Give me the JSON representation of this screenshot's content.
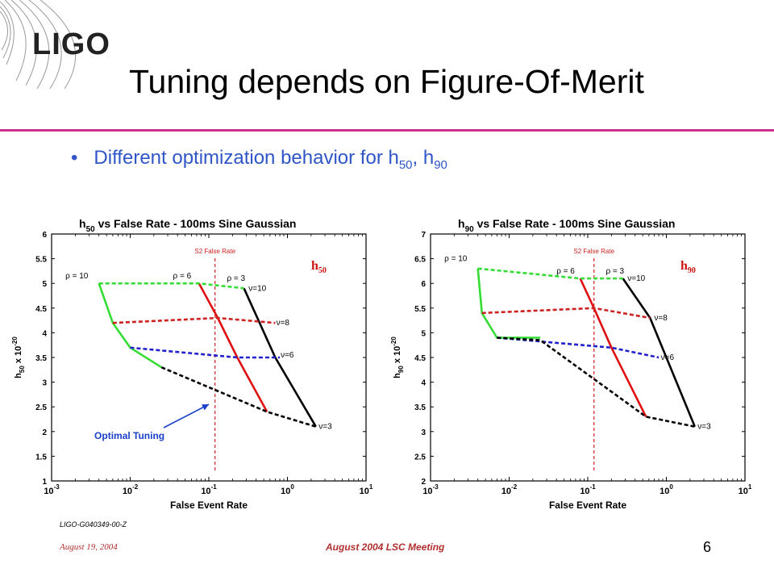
{
  "logo": {
    "text": "LIGO"
  },
  "slide": {
    "title": "Tuning depends on Figure-Of-Merit",
    "bullet": {
      "text": "Different optimization behavior for h",
      "sub1": "50",
      "sep": ", h",
      "sub2": "90"
    }
  },
  "footer": {
    "doc_id": "LIGO-G040349-00-Z",
    "date": "August 19, 2004",
    "meeting": "August 2004 LSC Meeting",
    "page": "6"
  },
  "colors": {
    "accent_rule": "#c8328c",
    "bullet_text": "#2f55c6",
    "footer_text": "#b0302f",
    "rho10": "#33dd33",
    "rho6": "#dd1111",
    "rho3": "#000000",
    "nu8": "#cc2222",
    "nu6": "#2222cc",
    "nu3": "#000000",
    "s2_line": "#cc2222",
    "annotation": "#1a3fc8"
  },
  "chart_data": [
    {
      "type": "line",
      "title_prefix": "h",
      "title_sub": "50",
      "title_rest": " vs False Rate - 100ms Sine Gaussian",
      "xlabel": "False Event Rate",
      "ylabel_prefix": "h",
      "ylabel_sub": "50",
      "ylabel_rest": " x 10",
      "ylabel_exp": "-20",
      "x_scale": "log",
      "xlim": [
        0.001,
        10
      ],
      "x_ticks": [
        {
          "v": 0.001,
          "e": "-3"
        },
        {
          "v": 0.01,
          "e": "-2"
        },
        {
          "v": 0.1,
          "e": "-1"
        },
        {
          "v": 1,
          "e": "0"
        },
        {
          "v": 10,
          "e": "1"
        }
      ],
      "ylim": [
        1,
        6
      ],
      "y_ticks": [
        {
          "v": 1,
          "l": "1"
        },
        {
          "v": 1.5,
          "l": "1.5"
        },
        {
          "v": 2,
          "l": "2"
        },
        {
          "v": 2.5,
          "l": "2.5"
        },
        {
          "v": 3,
          "l": "3"
        },
        {
          "v": 3.5,
          "l": "3.5"
        },
        {
          "v": 4,
          "l": "4"
        },
        {
          "v": 4.5,
          "l": "4.5"
        },
        {
          "v": 5,
          "l": "5"
        },
        {
          "v": 5.5,
          "l": "5.5"
        },
        {
          "v": 6,
          "l": "6"
        }
      ],
      "corner_label": {
        "main": "h",
        "sub": "50"
      },
      "s2": {
        "x": 0.12,
        "label": "S2 False Rate"
      },
      "series": [
        {
          "name": "ρ = 10",
          "style": "solid",
          "color": "#33dd33",
          "points": [
            [
              0.004,
              5.0
            ],
            [
              0.006,
              4.2
            ],
            [
              0.01,
              3.7
            ],
            [
              0.025,
              3.3
            ]
          ]
        },
        {
          "name": "ρ = 6",
          "style": "solid",
          "color": "#dd1111",
          "points": [
            [
              0.075,
              5.0
            ],
            [
              0.13,
              4.3
            ],
            [
              0.23,
              3.5
            ],
            [
              0.55,
              2.4
            ]
          ]
        },
        {
          "name": "ρ = 3",
          "style": "solid",
          "color": "#000000",
          "points": [
            [
              0.28,
              4.9
            ],
            [
              0.7,
              3.5
            ],
            [
              2.3,
              2.1
            ]
          ]
        },
        {
          "name": "ν=10",
          "style": "dashed",
          "color": "#33dd33",
          "points": [
            [
              0.004,
              5.0
            ],
            [
              0.075,
              5.0
            ],
            [
              0.28,
              4.9
            ]
          ]
        },
        {
          "name": "ν=8",
          "style": "dashed",
          "color": "#cc2222",
          "points": [
            [
              0.006,
              4.2
            ],
            [
              0.13,
              4.3
            ],
            [
              0.7,
              4.2
            ]
          ]
        },
        {
          "name": "ν=6",
          "style": "dashed",
          "color": "#2222cc",
          "points": [
            [
              0.01,
              3.7
            ],
            [
              0.23,
              3.5
            ],
            [
              0.8,
              3.5
            ]
          ]
        },
        {
          "name": "ν=3",
          "style": "dashed",
          "color": "#000000",
          "points": [
            [
              0.025,
              3.3
            ],
            [
              0.55,
              2.4
            ],
            [
              2.3,
              2.1
            ]
          ]
        }
      ],
      "labels": [
        {
          "text": "ρ = 10",
          "x": 0.0015,
          "y": 5.1,
          "color": "#000000"
        },
        {
          "text": "ρ = 6",
          "x": 0.035,
          "y": 5.1,
          "color": "#000000"
        },
        {
          "text": "ρ = 3",
          "x": 0.17,
          "y": 5.05,
          "color": "#000000"
        },
        {
          "text": "ν=10",
          "x": 0.32,
          "y": 4.85,
          "color": "#000000"
        },
        {
          "text": "ν=8",
          "x": 0.72,
          "y": 4.15,
          "color": "#000000"
        },
        {
          "text": "ν=6",
          "x": 0.82,
          "y": 3.5,
          "color": "#000000"
        },
        {
          "text": "ν=3",
          "x": 2.5,
          "y": 2.05,
          "color": "#000000"
        }
      ],
      "annotation": {
        "text": "Optimal Tuning",
        "text_x": 0.0035,
        "text_y": 1.85,
        "arrow_to_x": 0.1,
        "arrow_to_y": 2.55
      }
    },
    {
      "type": "line",
      "title_prefix": "h",
      "title_sub": "90",
      "title_rest": " vs False Rate - 100ms Sine Gaussian",
      "xlabel": "False Event Rate",
      "ylabel_prefix": "h",
      "ylabel_sub": "90",
      "ylabel_rest": " x 10",
      "ylabel_exp": "-20",
      "x_scale": "log",
      "xlim": [
        0.001,
        10
      ],
      "x_ticks": [
        {
          "v": 0.001,
          "e": "-3"
        },
        {
          "v": 0.01,
          "e": "-2"
        },
        {
          "v": 0.1,
          "e": "-1"
        },
        {
          "v": 1,
          "e": "0"
        },
        {
          "v": 10,
          "e": "1"
        }
      ],
      "ylim": [
        2,
        7
      ],
      "y_ticks": [
        {
          "v": 2,
          "l": "2"
        },
        {
          "v": 2.5,
          "l": "2.5"
        },
        {
          "v": 3,
          "l": "3"
        },
        {
          "v": 3.5,
          "l": "3.5"
        },
        {
          "v": 4,
          "l": "4"
        },
        {
          "v": 4.5,
          "l": "4.5"
        },
        {
          "v": 5,
          "l": "5"
        },
        {
          "v": 5.5,
          "l": "5.5"
        },
        {
          "v": 6,
          "l": "6"
        },
        {
          "v": 6.5,
          "l": "6.5"
        },
        {
          "v": 7,
          "l": "7"
        }
      ],
      "corner_label": {
        "main": "h",
        "sub": "90"
      },
      "s2": {
        "x": 0.12,
        "label": "S2 False Rate"
      },
      "series": [
        {
          "name": "ρ = 10",
          "style": "solid",
          "color": "#33dd33",
          "points": [
            [
              0.004,
              6.3
            ],
            [
              0.0045,
              5.4
            ],
            [
              0.007,
              4.9
            ],
            [
              0.025,
              4.9
            ]
          ]
        },
        {
          "name": "ρ = 6",
          "style": "solid",
          "color": "#dd1111",
          "points": [
            [
              0.08,
              6.1
            ],
            [
              0.12,
              5.5
            ],
            [
              0.2,
              4.7
            ],
            [
              0.55,
              3.3
            ]
          ]
        },
        {
          "name": "ρ = 3",
          "style": "solid",
          "color": "#000000",
          "points": [
            [
              0.28,
              6.1
            ],
            [
              0.62,
              5.3
            ],
            [
              2.3,
              3.1
            ]
          ]
        },
        {
          "name": "ν=10",
          "style": "dashed",
          "color": "#33dd33",
          "points": [
            [
              0.004,
              6.3
            ],
            [
              0.08,
              6.1
            ],
            [
              0.28,
              6.1
            ]
          ]
        },
        {
          "name": "ν=8",
          "style": "dashed",
          "color": "#cc2222",
          "points": [
            [
              0.0045,
              5.4
            ],
            [
              0.12,
              5.5
            ],
            [
              0.62,
              5.3
            ]
          ]
        },
        {
          "name": "ν=6",
          "style": "dashed",
          "color": "#2222cc",
          "points": [
            [
              0.007,
              4.9
            ],
            [
              0.2,
              4.7
            ],
            [
              0.8,
              4.5
            ]
          ]
        },
        {
          "name": "ν=3",
          "style": "dashed",
          "color": "#000000",
          "points": [
            [
              0.007,
              4.9
            ],
            [
              0.025,
              4.85
            ],
            [
              0.55,
              3.3
            ],
            [
              2.3,
              3.1
            ]
          ]
        }
      ],
      "labels": [
        {
          "text": "ρ = 10",
          "x": 0.0015,
          "y": 6.45,
          "color": "#000000"
        },
        {
          "text": "ρ = 6",
          "x": 0.04,
          "y": 6.2,
          "color": "#000000"
        },
        {
          "text": "ρ = 3",
          "x": 0.17,
          "y": 6.2,
          "color": "#000000"
        },
        {
          "text": "ν=10",
          "x": 0.32,
          "y": 6.05,
          "color": "#000000"
        },
        {
          "text": "ν=8",
          "x": 0.7,
          "y": 5.25,
          "color": "#000000"
        },
        {
          "text": "ν=6",
          "x": 0.85,
          "y": 4.45,
          "color": "#000000"
        },
        {
          "text": "ν=3",
          "x": 2.5,
          "y": 3.05,
          "color": "#000000"
        }
      ]
    }
  ]
}
